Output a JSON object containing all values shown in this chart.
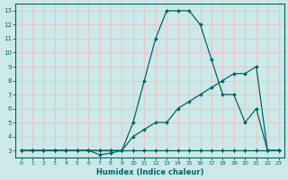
{
  "xlabel": "Humidex (Indice chaleur)",
  "bg_color": "#cce8e8",
  "line_color": "#006666",
  "grid_color": "#e8c8c8",
  "x": [
    0,
    1,
    2,
    3,
    4,
    5,
    6,
    7,
    8,
    9,
    10,
    11,
    12,
    13,
    14,
    15,
    16,
    17,
    18,
    19,
    20,
    21,
    22,
    23
  ],
  "y_max": [
    3,
    3,
    3,
    3,
    3,
    3,
    3,
    2.7,
    2.8,
    3,
    5,
    8,
    11,
    13,
    13,
    13,
    12,
    9.5,
    7,
    7,
    5,
    6,
    3,
    3
  ],
  "y_mean": [
    3,
    3,
    3,
    3,
    3,
    3,
    3,
    3,
    3,
    3,
    4,
    4.5,
    5,
    5,
    6,
    6.5,
    7,
    7.5,
    8,
    8.5,
    8.5,
    9,
    3,
    3
  ],
  "y_min": [
    3,
    3,
    3,
    3,
    3,
    3,
    3,
    3,
    3,
    3,
    3,
    3,
    3,
    3,
    3,
    3,
    3,
    3,
    3,
    3,
    3,
    3,
    3,
    3
  ],
  "xlim": [
    -0.5,
    23.5
  ],
  "ylim": [
    2.5,
    13.5
  ],
  "yticks": [
    3,
    4,
    5,
    6,
    7,
    8,
    9,
    10,
    11,
    12,
    13
  ],
  "xticks": [
    0,
    1,
    2,
    3,
    4,
    5,
    6,
    7,
    8,
    9,
    10,
    11,
    12,
    13,
    14,
    15,
    16,
    17,
    18,
    19,
    20,
    21,
    22,
    23
  ],
  "figsize": [
    3.2,
    2.0
  ],
  "dpi": 100
}
